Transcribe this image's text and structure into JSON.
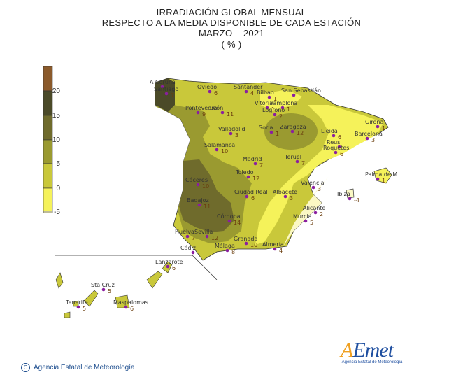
{
  "title": {
    "line1": "IRRADIACIÓN  GLOBAL MENSUAL",
    "line2": "RESPECTO  A LA MEDIA DISPONIBLE DE CADA ESTACIÓN",
    "line3": "MARZO – 2021",
    "line4": "( % )"
  },
  "legend": {
    "levels": [
      {
        "label": "20",
        "color": "#4b4a28"
      },
      {
        "label": "15",
        "color": "#6f6b2c"
      },
      {
        "label": "10",
        "color": "#9a9a30"
      },
      {
        "label": "5",
        "color": "#c9c83a"
      },
      {
        "label": "0",
        "color": "#f5f25a"
      },
      {
        "label": "-5",
        "color": "#fbf8c4"
      }
    ],
    "top_color": "#8b5a2b"
  },
  "stations": [
    {
      "name": "A Coruña",
      "value": ""
    },
    {
      "name": "Santiago",
      "value": "7"
    },
    {
      "name": "Oviedo",
      "value": "6"
    },
    {
      "name": "Santander",
      "value": "4"
    },
    {
      "name": "Bilbao",
      "value": "1"
    },
    {
      "name": "San Sebastián",
      "value": ""
    },
    {
      "name": "Vitoria",
      "value": "1"
    },
    {
      "name": "Pamplona",
      "value": "1"
    },
    {
      "name": "Logroño",
      "value": "2"
    },
    {
      "name": "Pontevedra",
      "value": "9"
    },
    {
      "name": "León",
      "value": "11"
    },
    {
      "name": "Girona",
      "value": "1"
    },
    {
      "name": "Lleida",
      "value": "6"
    },
    {
      "name": "Barcelona",
      "value": "3"
    },
    {
      "name": "Soria",
      "value": "1"
    },
    {
      "name": "Zaragoza",
      "value": "12"
    },
    {
      "name": "Reus",
      "value": ""
    },
    {
      "name": "Roquetes",
      "value": "6"
    },
    {
      "name": "Valladolid",
      "value": "3"
    },
    {
      "name": "Salamanca",
      "value": "10"
    },
    {
      "name": "Madrid",
      "value": "7"
    },
    {
      "name": "Teruel",
      "value": "7"
    },
    {
      "name": "Toledo",
      "value": "12"
    },
    {
      "name": "Palma de M.",
      "value": "1"
    },
    {
      "name": "Ibiza",
      "value": "-4"
    },
    {
      "name": "Cáceres",
      "value": "10"
    },
    {
      "name": "Valencia",
      "value": "3"
    },
    {
      "name": "Ciudad Real",
      "value": "6"
    },
    {
      "name": "Albacete",
      "value": "3"
    },
    {
      "name": "Badajoz",
      "value": "11"
    },
    {
      "name": "Alicante",
      "value": "2"
    },
    {
      "name": "Córdoba",
      "value": "14"
    },
    {
      "name": "Murcia",
      "value": "5"
    },
    {
      "name": "Huelva",
      "value": "7"
    },
    {
      "name": "Sevilla",
      "value": "12"
    },
    {
      "name": "Granada",
      "value": "10"
    },
    {
      "name": "Almería",
      "value": "4"
    },
    {
      "name": "Cádiz",
      "value": ""
    },
    {
      "name": "Málaga",
      "value": "8"
    },
    {
      "name": "Lanzarote",
      "value": "6"
    },
    {
      "name": "Sta Cruz",
      "value": "5"
    },
    {
      "name": "Tenerife",
      "value": "5"
    },
    {
      "name": "Maspalomas",
      "value": "6"
    }
  ],
  "footer": {
    "copyright_symbol": "C",
    "copyright_text": "Agencia Estatal de Meteorología",
    "logo_letter": "A",
    "logo_rest": "Emet",
    "logo_sub": "Agencia Estatal de Meteorología"
  }
}
